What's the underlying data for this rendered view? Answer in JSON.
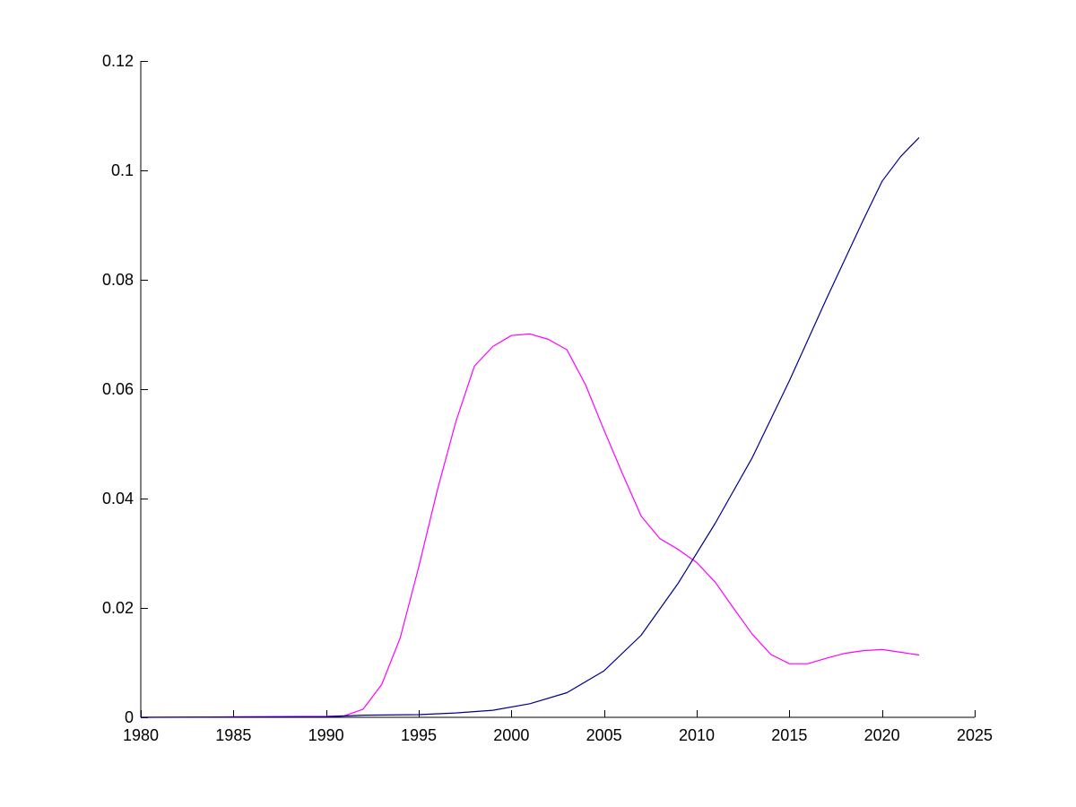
{
  "chart_data": {
    "type": "line",
    "title": "",
    "xlabel": "",
    "ylabel": "",
    "xlim": [
      1980,
      2025
    ],
    "ylim": [
      0,
      0.12
    ],
    "grid": false,
    "legend": "none",
    "x_ticks": [
      1980,
      1985,
      1990,
      1995,
      2000,
      2005,
      2010,
      2015,
      2020,
      2025
    ],
    "y_ticks": [
      0,
      0.02,
      0.04,
      0.06,
      0.08,
      0.1,
      0.12
    ],
    "x_tick_labels": [
      "1980",
      "1985",
      "1990",
      "1995",
      "2000",
      "2005",
      "2010",
      "2015",
      "2020",
      "2025"
    ],
    "y_tick_labels": [
      "0",
      "0.02",
      "0.04",
      "0.06",
      "0.08",
      "0.1",
      "0.12"
    ],
    "series": [
      {
        "color": "#ff00ff",
        "x": [
          1980,
          1985,
          1990,
          1991,
          1992,
          1993,
          1994,
          1995,
          1996,
          1997,
          1998,
          1999,
          2000,
          2001,
          2002,
          2003,
          2004,
          2005,
          2006,
          2007,
          2008,
          2009,
          2010,
          2011,
          2012,
          2013,
          2014,
          2015,
          2016,
          2017,
          2018,
          2019,
          2020,
          2021,
          2022
        ],
        "y": [
          0,
          0.0001,
          0.0002,
          0.0003,
          0.0015,
          0.006,
          0.0145,
          0.0275,
          0.0415,
          0.054,
          0.0642,
          0.0678,
          0.0698,
          0.0701,
          0.0691,
          0.0672,
          0.0608,
          0.0525,
          0.0445,
          0.0368,
          0.0327,
          0.0307,
          0.0283,
          0.0247,
          0.0199,
          0.0152,
          0.0115,
          0.0098,
          0.0098,
          0.0108,
          0.0117,
          0.0122,
          0.0124,
          0.0119,
          0.0114
        ]
      },
      {
        "color": "#00008b",
        "x": [
          1980,
          1990,
          1992,
          1995,
          1997,
          1999,
          2001,
          2003,
          2005,
          2007,
          2009,
          2011,
          2013,
          2015,
          2017,
          2019,
          2020,
          2021,
          2022
        ],
        "y": [
          0,
          0.0001,
          0.0004,
          0.0005,
          0.0008,
          0.0013,
          0.0025,
          0.0045,
          0.0085,
          0.015,
          0.0245,
          0.0355,
          0.0475,
          0.0615,
          0.0765,
          0.091,
          0.098,
          0.1025,
          0.106
        ]
      }
    ]
  }
}
